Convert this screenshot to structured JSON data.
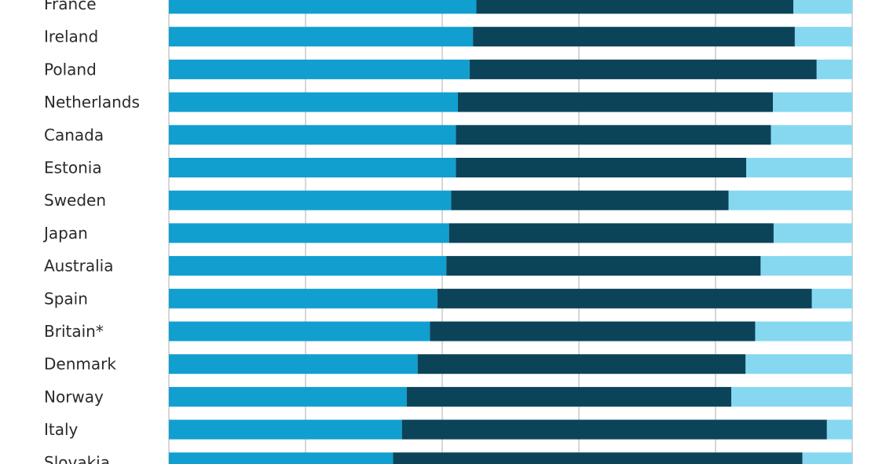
{
  "chart_data": {
    "type": "bar",
    "stacked": true,
    "orientation": "horizontal",
    "xlim": [
      0,
      100
    ],
    "grid": true,
    "categories": [
      "France",
      "Ireland",
      "Poland",
      "Netherlands",
      "Canada",
      "Estonia",
      "Sweden",
      "Japan",
      "Australia",
      "Spain",
      "Britain*",
      "Denmark",
      "Norway",
      "Italy",
      "Slovakia"
    ],
    "series": [
      {
        "color": "#119fd0",
        "values": [
          45,
          44.5,
          44,
          42.3,
          42,
          42,
          41.3,
          41,
          40.6,
          39.3,
          38.2,
          36.4,
          34.8,
          34.1,
          32.8
        ]
      },
      {
        "color": "#0b4459",
        "values": [
          46.4,
          47.1,
          50.8,
          46.1,
          46.1,
          42.5,
          40.6,
          47.5,
          46,
          54.8,
          47.6,
          48,
          47.5,
          62.2,
          59.9
        ]
      },
      {
        "color": "#86d8f1",
        "values": [
          8.6,
          8.4,
          5.2,
          11.6,
          11.9,
          15.5,
          18.1,
          11.5,
          13.4,
          5.9,
          14.2,
          15.6,
          17.7,
          3.7,
          7.3
        ]
      }
    ]
  }
}
